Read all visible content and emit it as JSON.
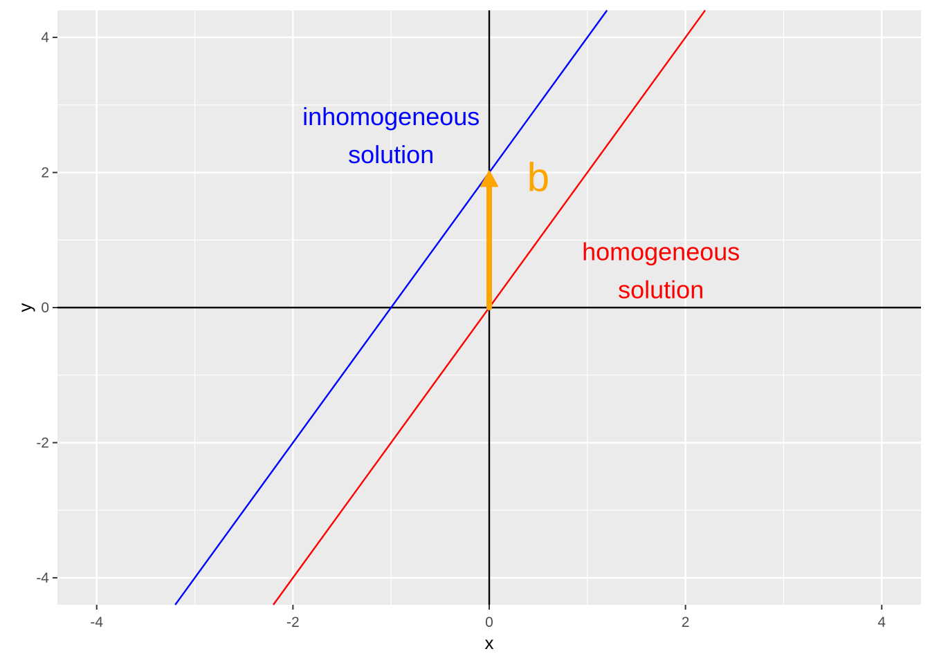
{
  "chart_data": {
    "type": "line",
    "title": "",
    "xlabel": "x",
    "ylabel": "y",
    "xlim": [
      -4.4,
      4.4
    ],
    "ylim": [
      -4.4,
      4.4
    ],
    "x_ticks": [
      -4,
      -2,
      0,
      2,
      4
    ],
    "y_ticks": [
      -4,
      -2,
      0,
      2,
      4
    ],
    "x_tick_labels": [
      "-4",
      "-2",
      "0",
      "2",
      "4"
    ],
    "y_tick_labels": [
      "-4",
      "-2",
      "0",
      "2",
      "4"
    ],
    "grid": true,
    "series": [
      {
        "label_lines": [
          "inhomogeneous",
          "solution"
        ],
        "slope": 2,
        "intercept": 2,
        "color": "#0000ff"
      },
      {
        "label_lines": [
          "homogeneous",
          "solution"
        ],
        "slope": 2,
        "intercept": 0,
        "color": "#ff0000"
      }
    ],
    "vector": {
      "label": "b",
      "from": [
        0,
        0
      ],
      "to": [
        0,
        2
      ],
      "color": "#ffa500"
    },
    "reference_lines": {
      "x": 0,
      "y": 0,
      "color": "#000000"
    },
    "annotations": [
      {
        "text_lines": [
          "inhomogeneous",
          "solution"
        ],
        "x": -1.0,
        "y": 2.7,
        "color": "#0000ff"
      },
      {
        "text": "b",
        "x": 0.5,
        "y": 1.95,
        "color": "#ffa500"
      },
      {
        "text_lines": [
          "homogeneous",
          "solution"
        ],
        "x": 1.75,
        "y": 0.7,
        "color": "#ff0000"
      }
    ]
  }
}
